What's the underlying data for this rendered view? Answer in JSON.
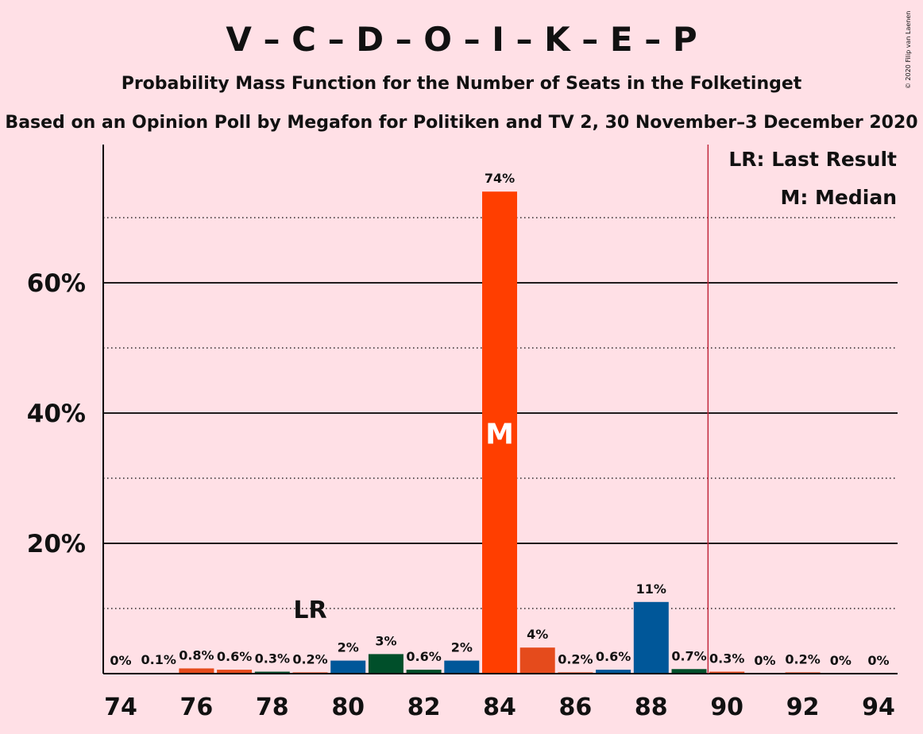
{
  "chart_data": {
    "type": "bar",
    "title": "V – C – D – O – I – K – E – P",
    "subtitle": "Probability Mass Function for the Number of Seats in the Folketinget",
    "subtitle2": "Based on an Opinion Poll by Megafon for Politiken and TV 2, 30 November–3 December 2020",
    "copyright": "© 2020 Filip van Laenen",
    "xlim": [
      74,
      94
    ],
    "ylim": [
      0,
      80
    ],
    "x_tick_values": [
      74,
      76,
      78,
      80,
      82,
      84,
      86,
      88,
      90,
      92,
      94
    ],
    "y_tick_values": [
      20,
      40,
      60
    ],
    "y_tick_labels": [
      "20%",
      "40%",
      "60%"
    ],
    "minor_grid": [
      10,
      30,
      50,
      70
    ],
    "seats": [
      74,
      75,
      76,
      77,
      78,
      79,
      80,
      81,
      82,
      83,
      84,
      85,
      86,
      87,
      88,
      89,
      90,
      91,
      92,
      93,
      94
    ],
    "values": [
      0,
      0.1,
      0.8,
      0.6,
      0.3,
      0.2,
      2,
      3,
      0.6,
      2,
      74,
      4,
      0.2,
      0.6,
      11,
      0.7,
      0.3,
      0,
      0.2,
      0,
      0
    ],
    "labels": [
      "0%",
      "0.1%",
      "0.8%",
      "0.6%",
      "0.3%",
      "0.2%",
      "2%",
      "3%",
      "0.6%",
      "2%",
      "74%",
      "4%",
      "0.2%",
      "0.6%",
      "11%",
      "0.7%",
      "0.3%",
      "0%",
      "0.2%",
      "0%",
      "0%"
    ],
    "bar_colors": [
      "#E54B1C",
      "#E54B1C",
      "#E54B1C",
      "#E54B1C",
      "#004F2A",
      "#E54B1C",
      "#005799",
      "#004F2A",
      "#004F2A",
      "#005799",
      "#FF3E00",
      "#E54B1C",
      "#E54B1C",
      "#005799",
      "#005799",
      "#004F2A",
      "#E54B1C",
      "#E54B1C",
      "#E54B1C",
      "#E54B1C",
      "#E54B1C"
    ],
    "last_result": 79,
    "last_result_label": "LR",
    "median": 84,
    "median_label": "M",
    "majority_line": 89.5,
    "majority_color": "#C0283C",
    "legend": [
      "LR: Last Result",
      "M: Median"
    ]
  }
}
